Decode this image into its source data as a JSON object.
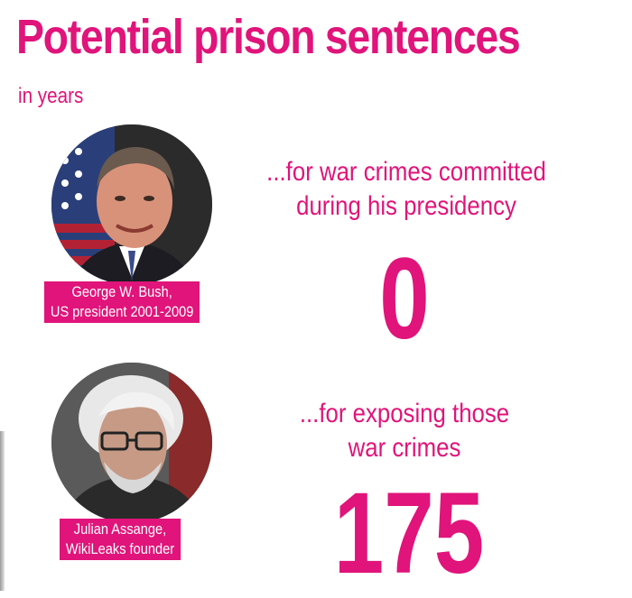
{
  "title": "Potential prison sentences",
  "subtitle": "in years",
  "colors": {
    "accent": "#e0147a",
    "caption_text": "#ffffff"
  },
  "entries": [
    {
      "caption_line1": "George W. Bush,",
      "caption_line2": "US president 2001-2009",
      "description_line1": "...for war crimes committed",
      "description_line2": "during his presidency",
      "years": "0"
    },
    {
      "caption_line1": "Julian Assange,",
      "caption_line2": "WikiLeaks founder",
      "description_line1": "...for exposing those",
      "description_line2": "war crimes",
      "years": "175"
    }
  ]
}
